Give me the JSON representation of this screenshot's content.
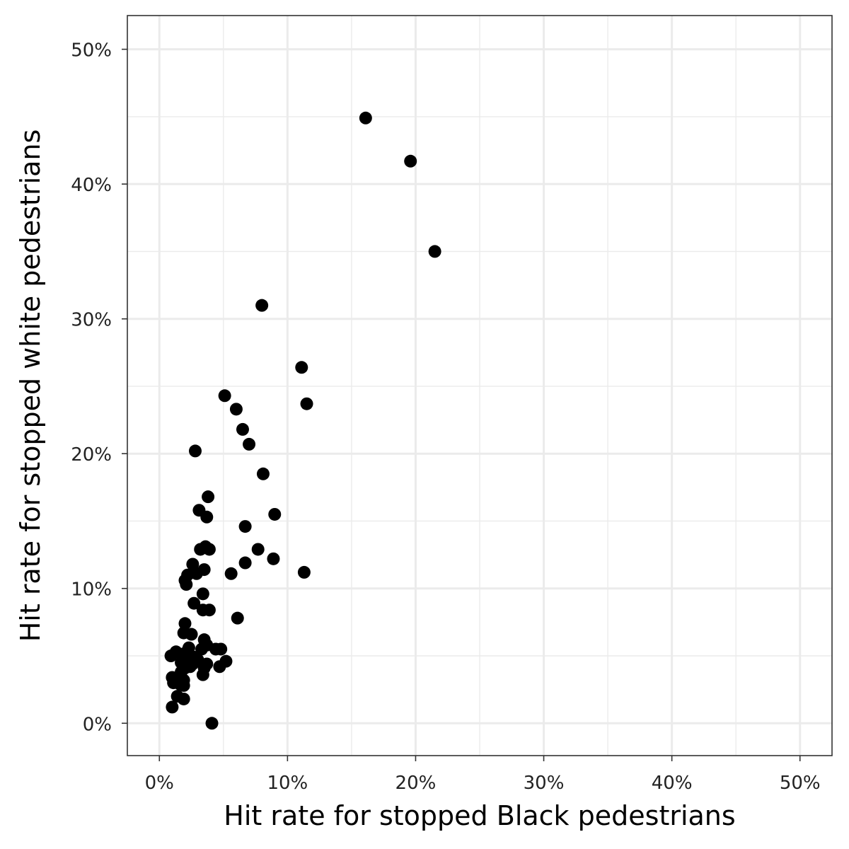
{
  "chart_data": {
    "type": "scatter",
    "title": "",
    "xlabel": "Hit rate for stopped Black pedestrians",
    "ylabel": "Hit rate for stopped white pedestrians",
    "xlim": [
      -0.025,
      0.525
    ],
    "ylim": [
      -0.024,
      0.525
    ],
    "x_ticks": [
      0,
      0.1,
      0.2,
      0.3,
      0.4,
      0.5
    ],
    "x_tick_labels": [
      "0%",
      "10%",
      "20%",
      "30%",
      "40%",
      "50%"
    ],
    "y_ticks": [
      0,
      0.1,
      0.2,
      0.3,
      0.4,
      0.5
    ],
    "y_tick_labels": [
      "0%",
      "10%",
      "20%",
      "30%",
      "40%",
      "50%"
    ],
    "grid": true,
    "legend": "none",
    "point_color": "#000000",
    "series": [
      {
        "points": [
          [
            0.161,
            0.449
          ],
          [
            0.196,
            0.417
          ],
          [
            0.215,
            0.35
          ],
          [
            0.08,
            0.31
          ],
          [
            0.111,
            0.264
          ],
          [
            0.115,
            0.237
          ],
          [
            0.051,
            0.243
          ],
          [
            0.06,
            0.233
          ],
          [
            0.065,
            0.218
          ],
          [
            0.07,
            0.207
          ],
          [
            0.028,
            0.202
          ],
          [
            0.081,
            0.185
          ],
          [
            0.038,
            0.168
          ],
          [
            0.031,
            0.158
          ],
          [
            0.037,
            0.153
          ],
          [
            0.09,
            0.155
          ],
          [
            0.067,
            0.146
          ],
          [
            0.032,
            0.129
          ],
          [
            0.036,
            0.131
          ],
          [
            0.039,
            0.129
          ],
          [
            0.077,
            0.129
          ],
          [
            0.089,
            0.122
          ],
          [
            0.067,
            0.119
          ],
          [
            0.026,
            0.118
          ],
          [
            0.035,
            0.114
          ],
          [
            0.113,
            0.112
          ],
          [
            0.056,
            0.111
          ],
          [
            0.029,
            0.111
          ],
          [
            0.022,
            0.11
          ],
          [
            0.02,
            0.106
          ],
          [
            0.021,
            0.103
          ],
          [
            0.034,
            0.096
          ],
          [
            0.027,
            0.089
          ],
          [
            0.034,
            0.084
          ],
          [
            0.039,
            0.084
          ],
          [
            0.061,
            0.078
          ],
          [
            0.02,
            0.074
          ],
          [
            0.019,
            0.067
          ],
          [
            0.025,
            0.066
          ],
          [
            0.035,
            0.062
          ],
          [
            0.037,
            0.058
          ],
          [
            0.033,
            0.055
          ],
          [
            0.023,
            0.056
          ],
          [
            0.044,
            0.055
          ],
          [
            0.048,
            0.055
          ],
          [
            0.013,
            0.053
          ],
          [
            0.02,
            0.052
          ],
          [
            0.009,
            0.05
          ],
          [
            0.027,
            0.049
          ],
          [
            0.022,
            0.047
          ],
          [
            0.03,
            0.047
          ],
          [
            0.017,
            0.045
          ],
          [
            0.026,
            0.044
          ],
          [
            0.052,
            0.046
          ],
          [
            0.024,
            0.042
          ],
          [
            0.02,
            0.041
          ],
          [
            0.037,
            0.044
          ],
          [
            0.047,
            0.042
          ],
          [
            0.035,
            0.041
          ],
          [
            0.017,
            0.038
          ],
          [
            0.034,
            0.036
          ],
          [
            0.01,
            0.034
          ],
          [
            0.013,
            0.033
          ],
          [
            0.019,
            0.032
          ],
          [
            0.011,
            0.03
          ],
          [
            0.016,
            0.029
          ],
          [
            0.019,
            0.028
          ],
          [
            0.014,
            0.02
          ],
          [
            0.019,
            0.018
          ],
          [
            0.01,
            0.012
          ],
          [
            0.041,
            0.0
          ]
        ]
      }
    ]
  }
}
